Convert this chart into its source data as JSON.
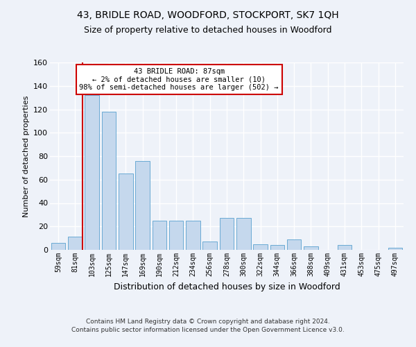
{
  "title1": "43, BRIDLE ROAD, WOODFORD, STOCKPORT, SK7 1QH",
  "title2": "Size of property relative to detached houses in Woodford",
  "xlabel": "Distribution of detached houses by size in Woodford",
  "ylabel": "Number of detached properties",
  "categories": [
    "59sqm",
    "81sqm",
    "103sqm",
    "125sqm",
    "147sqm",
    "169sqm",
    "190sqm",
    "212sqm",
    "234sqm",
    "256sqm",
    "278sqm",
    "300sqm",
    "322sqm",
    "344sqm",
    "366sqm",
    "388sqm",
    "409sqm",
    "431sqm",
    "453sqm",
    "475sqm",
    "497sqm"
  ],
  "values": [
    6,
    11,
    132,
    118,
    65,
    76,
    25,
    25,
    25,
    7,
    27,
    27,
    5,
    4,
    9,
    3,
    0,
    4,
    0,
    0,
    2
  ],
  "bar_color": "#c5d8ed",
  "bar_edge_color": "#6aaad4",
  "background_color": "#eef2f9",
  "grid_color": "#ffffff",
  "annotation_text1": "43 BRIDLE ROAD: 87sqm",
  "annotation_text2": "← 2% of detached houses are smaller (10)",
  "annotation_text3": "98% of semi-detached houses are larger (502) →",
  "red_line_color": "#cc0000",
  "annotation_box_color": "#ffffff",
  "annotation_box_edge": "#cc0000",
  "footer1": "Contains HM Land Registry data © Crown copyright and database right 2024.",
  "footer2": "Contains public sector information licensed under the Open Government Licence v3.0.",
  "ylim": [
    0,
    160
  ],
  "yticks": [
    0,
    20,
    40,
    60,
    80,
    100,
    120,
    140,
    160
  ]
}
